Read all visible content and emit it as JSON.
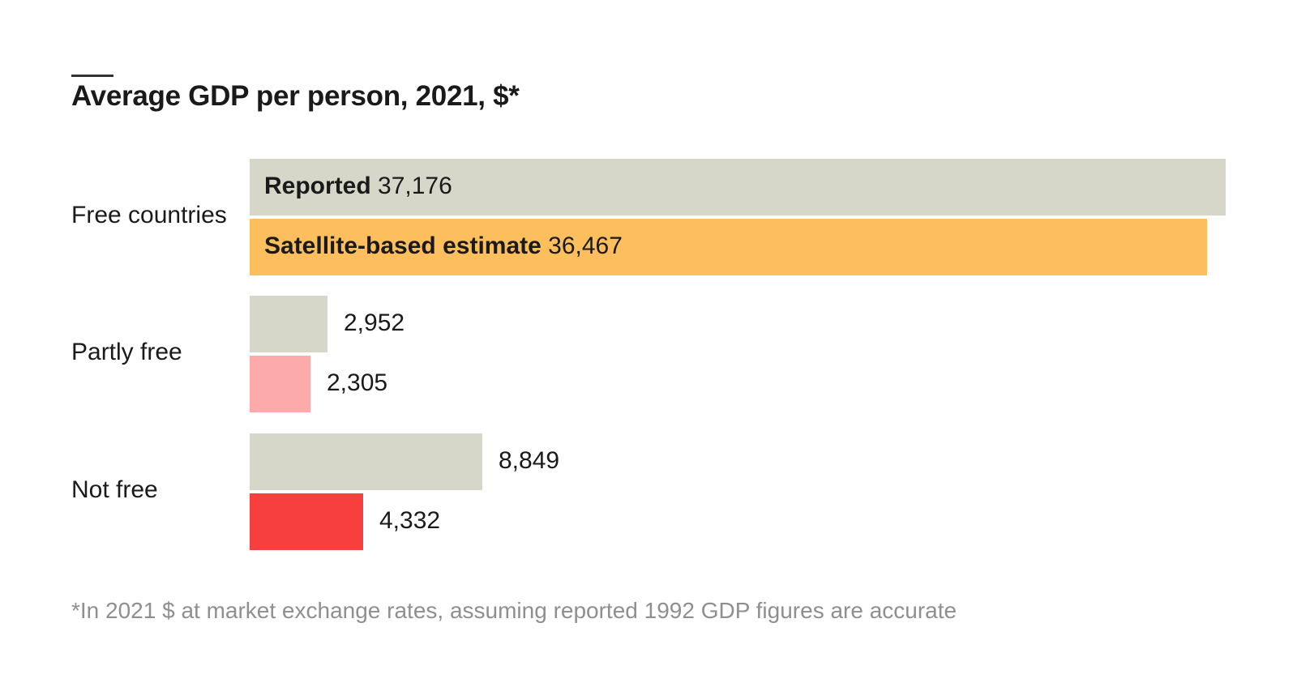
{
  "chart_data": {
    "type": "bar",
    "orientation": "horizontal",
    "title": "Average GDP per person, 2021, $*",
    "categories": [
      "Free countries",
      "Partly free",
      "Not free"
    ],
    "series": [
      {
        "name": "Reported",
        "values": [
          37176,
          2952,
          8849
        ],
        "value_labels": [
          "37,176",
          "2,952",
          "8,849"
        ],
        "colors": [
          "#d6d6c9",
          "#d6d6c9",
          "#d6d6c9"
        ]
      },
      {
        "name": "Satellite-based estimate",
        "values": [
          36467,
          2305,
          4332
        ],
        "value_labels": [
          "36,467",
          "2,305",
          "4,332"
        ],
        "colors": [
          "#fdbf5e",
          "#fdaaaa",
          "#f7403d"
        ]
      }
    ],
    "xlim": [
      0,
      37176
    ],
    "grid": false,
    "legend": "inline on first group",
    "footnote": "*In 2021 $ at market exchange rates, assuming reported 1992 GDP figures are accurate"
  }
}
